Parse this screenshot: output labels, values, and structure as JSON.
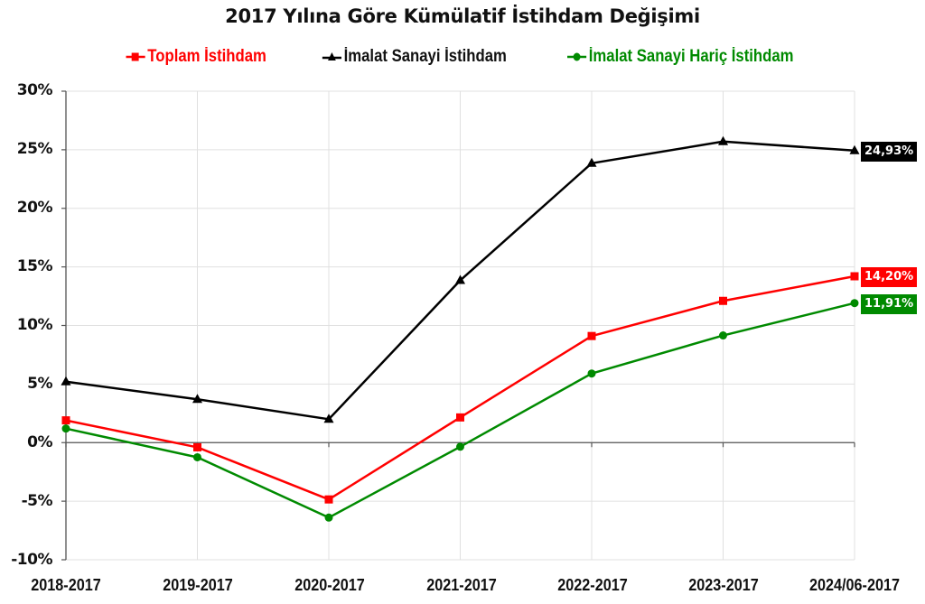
{
  "chart_data": {
    "type": "line",
    "title": "2017 Yılına Göre Kümülatif İstihdam Değişimi",
    "xlabel": "",
    "ylabel": "",
    "categories": [
      "2018-2017",
      "2019-2017",
      "2020-2017",
      "2021-2017",
      "2022-2017",
      "2023-2017",
      "2024/06-2017"
    ],
    "ylim": [
      -10,
      30
    ],
    "yticks": [
      "30%",
      "25%",
      "20%",
      "15%",
      "10%",
      "5%",
      "0%",
      "-5%",
      "-10%"
    ],
    "grid": true,
    "legend_position": "top",
    "series": [
      {
        "name": "Toplam İstihdam",
        "color": "#ff0000",
        "marker": "square",
        "values": [
          1.9,
          -0.4,
          -4.85,
          2.15,
          9.1,
          12.1,
          14.2
        ],
        "end_label": "14,20%"
      },
      {
        "name": "İmalat Sanayi İstihdam",
        "color": "#000000",
        "marker": "triangle",
        "values": [
          5.2,
          3.7,
          2.0,
          13.85,
          23.85,
          25.7,
          24.93
        ],
        "end_label": "24,93%"
      },
      {
        "name": "İmalat Sanayi Hariç İstihdam",
        "color": "#008a00",
        "marker": "circle",
        "values": [
          1.2,
          -1.25,
          -6.4,
          -0.35,
          5.9,
          9.15,
          11.91
        ],
        "end_label": "11,91%"
      }
    ]
  },
  "header": {
    "title": "2017 Yılına Göre Kümülatif İstihdam Değişimi"
  },
  "legend": [
    {
      "label": "Toplam İstihdam",
      "color": "#ff0000",
      "marker": "square"
    },
    {
      "label": "İmalat Sanayi İstihdam",
      "color": "#000000",
      "marker": "triangle"
    },
    {
      "label": "İmalat Sanayi Hariç İstihdam",
      "color": "#008a00",
      "marker": "circle"
    }
  ],
  "axis": {
    "y": [
      "30%",
      "25%",
      "20%",
      "15%",
      "10%",
      "5%",
      "0%",
      "-5%",
      "-10%"
    ],
    "x": [
      "2018-2017",
      "2019-2017",
      "2020-2017",
      "2021-2017",
      "2022-2017",
      "2023-2017",
      "2024/06-2017"
    ]
  },
  "end_labels": {
    "imalat": "24,93%",
    "toplam": "14,20%",
    "haric": "11,91%"
  }
}
